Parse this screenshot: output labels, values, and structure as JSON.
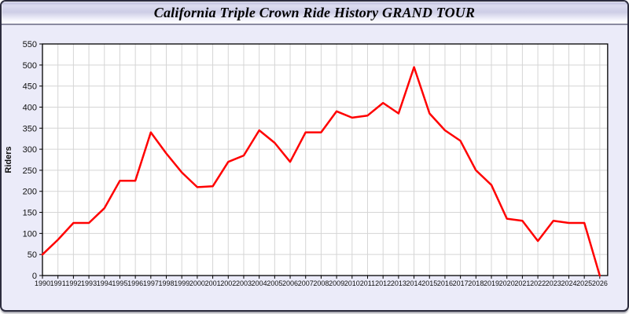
{
  "header": {
    "title": "California Triple Crown Ride History GRAND TOUR"
  },
  "chart_data": {
    "type": "line",
    "title": "California Triple Crown Ride History GRAND TOUR",
    "xlabel": "",
    "ylabel": "Riders",
    "x": [
      1990,
      1991,
      1992,
      1993,
      1994,
      1995,
      1996,
      1997,
      1998,
      1999,
      2000,
      2001,
      2002,
      2003,
      2004,
      2005,
      2006,
      2007,
      2008,
      2009,
      2010,
      2011,
      2012,
      2013,
      2014,
      2015,
      2016,
      2017,
      2018,
      2019,
      2020,
      2021,
      2022,
      2023,
      2024,
      2025,
      2026
    ],
    "series": [
      {
        "name": "Riders",
        "values": [
          50,
          85,
          125,
          125,
          160,
          225,
          225,
          340,
          290,
          245,
          210,
          212,
          270,
          285,
          345,
          315,
          270,
          340,
          340,
          390,
          375,
          380,
          410,
          385,
          495,
          385,
          345,
          320,
          250,
          215,
          135,
          130,
          82,
          130,
          125,
          125,
          0
        ]
      }
    ],
    "ylim": [
      0,
      550
    ],
    "ytick_step": 50,
    "grid": true,
    "legend": "none",
    "line_color": "#ff0000",
    "plot_bg": "#ffffff",
    "page_bg": "#ebebf9",
    "grid_color": "#d5d5d5",
    "axis_color": "#000000"
  }
}
